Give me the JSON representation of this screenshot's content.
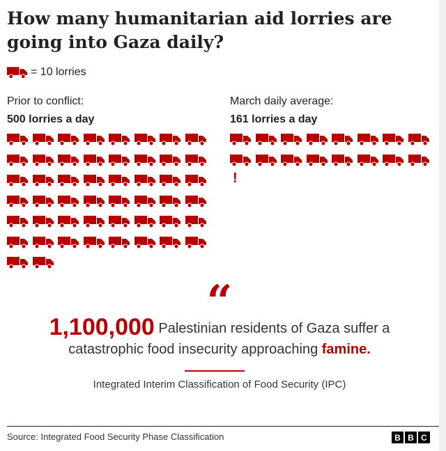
{
  "title": "How many humanitarian aid lorries are going into Gaza daily?",
  "legend": {
    "label": "= 10 lorries",
    "icon": "lorry-icon",
    "unit_value": 10
  },
  "colors": {
    "accent": "#b80000",
    "text": "#222222"
  },
  "chart_data": {
    "type": "pictogram",
    "unit": 10,
    "series": [
      {
        "label": "Prior to conflict:",
        "value_label": "500 lorries a day",
        "value": 500
      },
      {
        "label": "March daily average:",
        "value_label": "161 lorries a day",
        "value": 161
      }
    ]
  },
  "quote": {
    "mark": "“",
    "number": "1,100,000",
    "text_before": "Palestinian residents of Gaza suffer a catastrophic food insecurity approaching",
    "highlight": "famine",
    "text_after": ".",
    "attribution": "Integrated Interim Classification of Food Security (IPC)"
  },
  "footer": {
    "source": "Source: Integrated Food Security Phase Classification",
    "logo": [
      "B",
      "B",
      "C"
    ]
  }
}
